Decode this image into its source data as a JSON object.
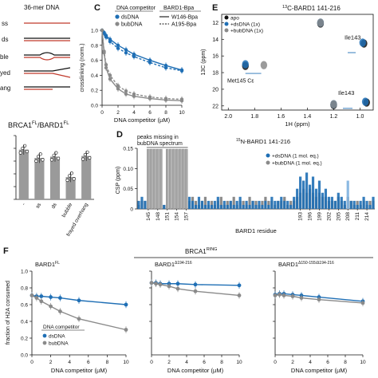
{
  "figure": {
    "colors": {
      "ds": "#1f6fb5",
      "bub": "#8a8a8a",
      "axis": "#111111",
      "red": "#c0392b",
      "light_blue": "#7fb3e0",
      "gray_bar": "#b0b0b0"
    },
    "panel_labels": {
      "C": "C",
      "D": "D",
      "E": "E",
      "F": "F"
    },
    "dna_panel": {
      "title": "36-mer DNA",
      "substrates": [
        "ss",
        "ds",
        "ble",
        "yed",
        "ang"
      ]
    },
    "panel_b_bottom": {
      "title_parts": {
        "brca": "BRCA1",
        "fl1": "FL",
        "sep": "/BARD1",
        "fl2": "FL"
      },
      "x_labels": [
        "-",
        "ss",
        "ds",
        "bubble",
        "frayed overhang"
      ]
    },
    "panel_c": {
      "legend_title": "DNA competitor",
      "legend_items": [
        "dsDNA",
        "bubDNA"
      ],
      "legend2_title": "BARD1-Bpa",
      "legend2_items": [
        "W146-Bpa",
        "A195-Bpa"
      ]
    },
    "panel_d": {
      "title": "15N-BARD1 141-216",
      "title_sup": "15",
      "title_rest": "N-BARD1 141-216",
      "annotation": "peaks missing in bubDNA spectrum",
      "annotation_line1": "peaks missing in",
      "annotation_line2": "bubDNA spectrum",
      "legend_items": [
        "+dsDNA (1 mol. eq.)",
        "+bubDNA (1 mol. eq.)"
      ]
    },
    "panel_e": {
      "title_sup": "13",
      "title_rest": "C-BARD1 141-216",
      "legend_items": [
        "apo",
        "+dsDNA (1x)",
        "+bubDNA (1x)"
      ],
      "peak_labels": [
        "Ile143",
        "Met145 Cε",
        "Ile143"
      ]
    },
    "panel_f": {
      "header": "BRCA1",
      "header_sup": "RING",
      "subpanels": [
        {
          "title": "BARD1",
          "title_sup": "FL"
        },
        {
          "title": "BARD1",
          "title_sup": "Δ194-216"
        },
        {
          "title": "BARD1",
          "title_sup": "Δ150-155/Δ194-216"
        }
      ],
      "legend_title": "DNA competitor",
      "legend_items": [
        "dsDNA",
        "bubDNA"
      ]
    }
  },
  "chart_data": [
    {
      "id": "B-bottom",
      "type": "bar",
      "title": "BRCA1FL/BARD1FL",
      "categories": [
        "-",
        "ss",
        "ds",
        "bubble",
        "frayed overhang"
      ],
      "values": [
        0.78,
        0.65,
        0.67,
        0.35,
        0.68
      ],
      "ylim": [
        0,
        1.0
      ],
      "yticks": [
        0,
        0.2,
        0.4,
        0.6,
        0.8,
        1.0
      ]
    },
    {
      "id": "C",
      "type": "line",
      "xlabel": "DNA competitor (µM)",
      "ylabel": "crosslinking (norm.)",
      "xlim": [
        0,
        10
      ],
      "ylim": [
        0,
        1.0
      ],
      "xticks": [
        0,
        2,
        4,
        6,
        8,
        10
      ],
      "yticks": [
        0.0,
        0.2,
        0.4,
        0.6,
        0.8,
        1.0
      ],
      "series": [
        {
          "name": "dsDNA W146-Bpa",
          "x": [
            0,
            0.25,
            0.5,
            1,
            2,
            3,
            4,
            6,
            8,
            10
          ],
          "y": [
            1.0,
            0.97,
            0.93,
            0.88,
            0.8,
            0.74,
            0.68,
            0.6,
            0.53,
            0.47
          ]
        },
        {
          "name": "dsDNA A195-Bpa",
          "x": [
            0,
            0.25,
            0.5,
            1,
            2,
            3,
            4,
            6,
            8,
            10
          ],
          "y": [
            1.0,
            0.96,
            0.91,
            0.85,
            0.76,
            0.7,
            0.65,
            0.57,
            0.5,
            0.46
          ]
        },
        {
          "name": "bubDNA W146-Bpa",
          "x": [
            0,
            0.25,
            0.5,
            1,
            2,
            3,
            4,
            6,
            8,
            10
          ],
          "y": [
            1.0,
            0.7,
            0.5,
            0.35,
            0.22,
            0.15,
            0.12,
            0.09,
            0.07,
            0.06
          ]
        },
        {
          "name": "bubDNA A195-Bpa",
          "x": [
            0,
            0.25,
            0.5,
            1,
            2,
            3,
            4,
            6,
            8,
            10
          ],
          "y": [
            1.0,
            0.72,
            0.54,
            0.4,
            0.26,
            0.19,
            0.15,
            0.11,
            0.09,
            0.08
          ]
        }
      ]
    },
    {
      "id": "D",
      "type": "bar",
      "xlabel": "BARD1 residue",
      "ylabel": "CSP (ppm)",
      "ylim": [
        0,
        0.15
      ],
      "yticks": [
        0,
        0.05,
        0.1,
        0.15
      ],
      "xtick_labels": [
        145,
        148,
        151,
        154,
        157,
        193,
        196,
        199,
        202,
        205,
        208,
        211,
        214
      ],
      "missing_ranges": [
        [
          145,
          149
        ],
        [
          151,
          157
        ]
      ],
      "series": [
        {
          "name": "+dsDNA (1 mol. eq.)",
          "x": [
            142,
            143,
            144,
            150,
            158,
            159,
            160,
            161,
            162,
            163,
            164,
            165,
            166,
            167,
            168,
            169,
            170,
            171,
            172,
            173,
            174,
            175,
            176,
            177,
            178,
            179,
            180,
            181,
            182,
            183,
            184,
            185,
            186,
            187,
            188,
            189,
            190,
            191,
            192,
            193,
            194,
            195,
            196,
            197,
            198,
            199,
            200,
            201,
            202,
            203,
            204,
            205,
            206,
            207,
            208,
            209,
            210,
            211,
            212,
            213,
            214,
            215,
            216
          ],
          "y": [
            0.02,
            0.03,
            0.02,
            0.01,
            0.03,
            0.02,
            0.01,
            0.03,
            0.02,
            0.01,
            0.02,
            0.01,
            0.02,
            0.03,
            0.01,
            0.02,
            0.01,
            0.02,
            0.01,
            0.02,
            0.03,
            0.01,
            0.02,
            0.01,
            0.02,
            0.01,
            0.02,
            0.01,
            0.02,
            0.01,
            0.03,
            0.02,
            0.02,
            0.03,
            0.02,
            0.02,
            0.01,
            0.03,
            0.05,
            0.08,
            0.07,
            0.09,
            0.06,
            0.08,
            0.05,
            0.07,
            0.04,
            0.05,
            0.03,
            0.03,
            0.02,
            0.04,
            0.03,
            0.02,
            0.07,
            0.02,
            0.02,
            0.01,
            0.02,
            0.03,
            0.02,
            0.01,
            0.03
          ]
        },
        {
          "name": "+bubDNA (1 mol. eq.)",
          "x": [
            142,
            143,
            144,
            150,
            158,
            159,
            160,
            161,
            162,
            163,
            164,
            165,
            166,
            167,
            168,
            169,
            170,
            171,
            172,
            173,
            174,
            175,
            176,
            177,
            178,
            179,
            180,
            181,
            182,
            183,
            184,
            185,
            186,
            187,
            188,
            189,
            190,
            191,
            192,
            193,
            194,
            195,
            196,
            197,
            198,
            199,
            200,
            201,
            202,
            203,
            204,
            205,
            206,
            207,
            208,
            209,
            210,
            211,
            212,
            213,
            214,
            215,
            216
          ],
          "y": [
            0.01,
            0.02,
            0.02,
            0.01,
            0.02,
            0.03,
            0.02,
            0.01,
            0.02,
            0.03,
            0.01,
            0.02,
            0.01,
            0.02,
            0.03,
            0.01,
            0.02,
            0.02,
            0.03,
            0.01,
            0.02,
            0.02,
            0.01,
            0.03,
            0.02,
            0.02,
            0.01,
            0.02,
            0.03,
            0.02,
            0.02,
            0.01,
            0.02,
            0.02,
            0.03,
            0.01,
            0.02,
            0.02,
            0.03,
            0.04,
            0.05,
            0.04,
            0.05,
            0.04,
            0.03,
            0.04,
            0.03,
            0.03,
            0.02,
            0.02,
            0.02,
            0.03,
            0.02,
            0.01,
            0.03,
            0.02,
            0.01,
            0.02,
            0.01,
            0.02,
            0.01,
            0.02,
            0.02
          ]
        }
      ]
    },
    {
      "id": "E",
      "type": "scatter",
      "xlabel": "1H (ppm)",
      "ylabel": "13C (ppm)",
      "xticks": [
        2.0,
        1.8,
        1.6,
        1.4,
        1.2,
        1.0
      ],
      "yticks": [
        12,
        14,
        16,
        18,
        20,
        22
      ],
      "xlim": [
        2.05,
        0.9
      ],
      "ylim": [
        11,
        22.5
      ],
      "series": [
        {
          "name": "apo",
          "points": [
            [
              1.87,
              17.2
            ],
            [
              1.3,
              12.1
            ],
            [
              1.2,
              21.9
            ],
            [
              0.97,
              14.5
            ],
            [
              0.95,
              21.6
            ]
          ]
        },
        {
          "name": "+dsDNA (1x)",
          "points": [
            [
              1.87,
              17.0
            ],
            [
              1.3,
              12.0
            ],
            [
              1.2,
              21.8
            ],
            [
              0.98,
              14.4
            ],
            [
              0.96,
              21.5
            ]
          ]
        },
        {
          "name": "+bubDNA (1x)",
          "points": [
            [
              1.73,
              17.1
            ],
            [
              1.3,
              12.0
            ],
            [
              1.2,
              21.8
            ]
          ]
        }
      ]
    },
    {
      "id": "F-FL",
      "type": "line",
      "title": "BARD1FL",
      "xlabel": "DNA competitor (µM)",
      "ylabel": "fraction of H2A consumed",
      "xlim": [
        0,
        10
      ],
      "ylim": [
        0,
        1.0
      ],
      "xticks": [
        0,
        2,
        4,
        6,
        8,
        10
      ],
      "yticks": [
        0.0,
        0.2,
        0.4,
        0.6,
        0.8,
        1.0
      ],
      "series": [
        {
          "name": "dsDNA",
          "x": [
            0,
            0.5,
            1,
            2,
            3,
            5,
            10
          ],
          "y": [
            0.71,
            0.7,
            0.7,
            0.69,
            0.68,
            0.65,
            0.6
          ]
        },
        {
          "name": "bubDNA",
          "x": [
            0,
            0.5,
            1,
            2,
            3,
            5,
            10
          ],
          "y": [
            0.71,
            0.68,
            0.64,
            0.58,
            0.52,
            0.43,
            0.3
          ]
        }
      ]
    },
    {
      "id": "F-d194",
      "type": "line",
      "title": "BARD1Δ194-216",
      "xlabel": "DNA competitor (µM)",
      "xlim": [
        0,
        10
      ],
      "ylim": [
        0,
        1.0
      ],
      "xticks": [
        0,
        2,
        4,
        6,
        8,
        10
      ],
      "series": [
        {
          "name": "dsDNA",
          "x": [
            0,
            0.5,
            1,
            2,
            3,
            5,
            10
          ],
          "y": [
            0.86,
            0.86,
            0.85,
            0.85,
            0.85,
            0.84,
            0.83
          ]
        },
        {
          "name": "bubDNA",
          "x": [
            0,
            0.5,
            1,
            2,
            3,
            5,
            10
          ],
          "y": [
            0.86,
            0.85,
            0.84,
            0.82,
            0.79,
            0.76,
            0.71
          ]
        }
      ]
    },
    {
      "id": "F-d150",
      "type": "line",
      "title": "BARD1Δ150-155/Δ194-216",
      "xlabel": "DNA competitor (µM)",
      "xlim": [
        0,
        10
      ],
      "ylim": [
        0,
        1.0
      ],
      "xticks": [
        0,
        2,
        4,
        6,
        8,
        10
      ],
      "series": [
        {
          "name": "dsDNA",
          "x": [
            0,
            0.5,
            1,
            2,
            3,
            5,
            10
          ],
          "y": [
            0.72,
            0.73,
            0.73,
            0.72,
            0.71,
            0.69,
            0.64
          ]
        },
        {
          "name": "bubDNA",
          "x": [
            0,
            0.5,
            1,
            2,
            3,
            5,
            10
          ],
          "y": [
            0.71,
            0.72,
            0.71,
            0.7,
            0.68,
            0.66,
            0.62
          ]
        }
      ]
    }
  ]
}
